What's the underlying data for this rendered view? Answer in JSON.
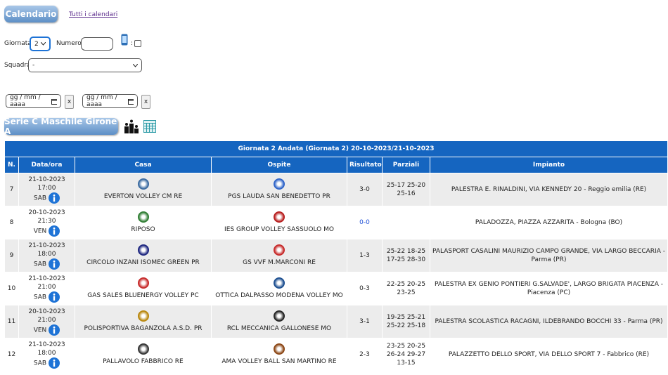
{
  "header": {
    "title": "Calendario",
    "link": "Tutti i calendari"
  },
  "filters": {
    "giornata_label": "Giornata:",
    "giornata_value": "2",
    "numero_label": "Numero:",
    "mobile_label": ":",
    "squadra_label": "Squadra:",
    "squadra_value": "-",
    "dates": [
      "gg / mm / aaaa",
      "gg / mm / aaaa"
    ],
    "clear": [
      "x",
      "x"
    ]
  },
  "section": {
    "title": "Serie C Maschile Girone A"
  },
  "table": {
    "caption": "Giornata 2 Andata (Giornata 2) 20-10-2023/21-10-2023",
    "columns": [
      "N.",
      "Data/ora",
      "Casa",
      "Ospite",
      "Risultato",
      "Parziali",
      "Impianto"
    ],
    "rows": [
      {
        "n": "7",
        "date": "21-10-2023 17:00",
        "day": "SAB",
        "home": "EVERTON VOLLEY CM RE",
        "away": "PGS LAUDA SAN BENEDETTO PR",
        "result": "3-0",
        "sets": "25-17 25-20 25-16",
        "venue": "PALESTRA E. RINALDINI, VIA KENNEDY 20 - Reggio emilia (RE)"
      },
      {
        "n": "8",
        "date": "20-10-2023 21:30",
        "day": "VEN",
        "home": "RIPOSO",
        "away": "IES GROUP VOLLEY SASSUOLO MO",
        "result": "0-0",
        "sets": null,
        "venue": "PALADOZZA, PIAZZA AZZARITA - Bologna (BO)"
      },
      {
        "n": "9",
        "date": "21-10-2023 18:00",
        "day": "SAB",
        "home": "CIRCOLO INZANI ISOMEC GREEN PR",
        "away": "GS VVF M.MARCONI RE",
        "result": "1-3",
        "sets": "25-22 18-25 17-25 28-30",
        "venue": "PALASPORT CASALINI MAURIZIO CAMPO GRANDE, VIA LARGO BECCARIA - Parma (PR)"
      },
      {
        "n": "10",
        "date": "21-10-2023 21:00",
        "day": "SAB",
        "home": "GAS SALES BLUENERGY VOLLEY PC",
        "away": "OTTICA DALPASSO MODENA VOLLEY MO",
        "result": "0-3",
        "sets": "22-25 20-25 23-25",
        "venue": "PALESTRA EX GENIO PONTIERI G.SALVADE', LARGO BRIGATA PIACENZA - Piacenza (PC)"
      },
      {
        "n": "11",
        "date": "20-10-2023 21:00",
        "day": "VEN",
        "home": "POLISPORTIVA BAGANZOLA A.S.D. PR",
        "away": "RCL MECCANICA GALLONESE MO",
        "result": "3-1",
        "sets": "19-25 25-21 25-22 25-18",
        "venue": "PALESTRA SCOLASTICA RACAGNI, ILDEBRANDO BOCCHI 33 - Parma (PR)"
      },
      {
        "n": "12",
        "date": "21-10-2023 18:00",
        "day": "SAB",
        "home": "PALLAVOLO FABBRICO RE",
        "away": "AMA VOLLEY BALL SAN MARTINO RE",
        "result": "2-3",
        "sets": "23-25 20-25 26-24 29-27 13-15",
        "venue": "PALAZZETTO DELLO SPORT, VIA DELLO SPORT 7 - Fabbrico (RE)"
      }
    ]
  }
}
